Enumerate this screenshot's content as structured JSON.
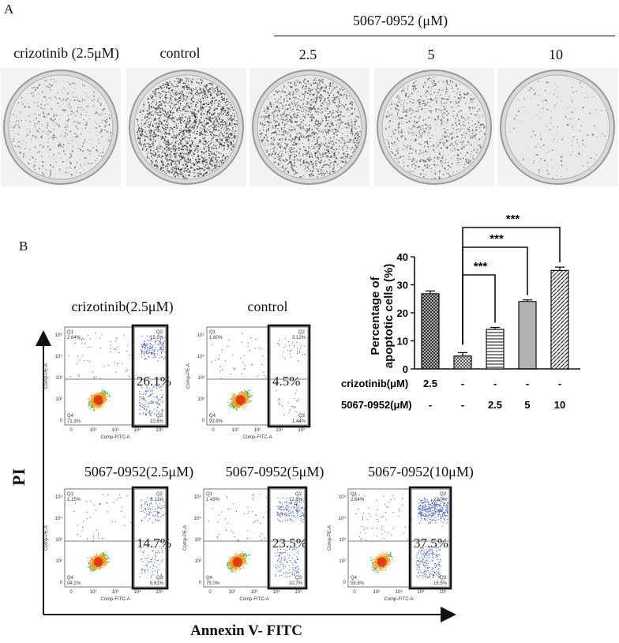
{
  "panelA": {
    "letter": "A",
    "group_header": "5067-0952 (μM)",
    "labels": [
      "crizotinib  (2.5μM)",
      "control",
      "2.5",
      "5",
      "10"
    ],
    "dish_density": [
      0.18,
      0.85,
      0.6,
      0.35,
      0.05
    ]
  },
  "panelB": {
    "letter": "B",
    "y_axis_title": "PI",
    "x_axis_title": "Annexin V- FITC",
    "plots": [
      {
        "title": "crizotinib(2.5μM)",
        "q1": "Q1",
        "q1v": "2.64%",
        "q2": "Q2",
        "q2v": "15.5%",
        "q3": "Q3",
        "q3v": "10.6%",
        "q4": "Q4",
        "q4v": "71.3%",
        "boxed": "26.1%"
      },
      {
        "title": "control",
        "q1": "Q1",
        "q1v": "1.60%",
        "q2": "Q2",
        "q2v": "3.12%",
        "q3": "Q3",
        "q3v": "1.44%",
        "q4": "Q4",
        "q4v": "93.9%",
        "boxed": "4.5%"
      },
      {
        "title": "5067-0952(2.5μM)",
        "q1": "Q1",
        "q1v": "1.15%",
        "q2": "Q2",
        "q2v": "8.11%",
        "q3": "Q3",
        "q3v": "6.61%",
        "q4": "Q4",
        "q4v": "84.1%",
        "boxed": "14.7%"
      },
      {
        "title": "5067-0952(5μM)",
        "q1": "Q1",
        "q1v": "1.43%",
        "q2": "Q2",
        "q2v": "12.8%",
        "q3": "Q3",
        "q3v": "10.7%",
        "q4": "Q4",
        "q4v": "75.0%",
        "boxed": "23.5%"
      },
      {
        "title": "5067-0952(10μM)",
        "q1": "Q1",
        "q1v": "2.64%",
        "q2": "Q2",
        "q2v": "22.0%",
        "q3": "Q3",
        "q3v": "15.5%",
        "q4": "Q4",
        "q4v": "59.8%",
        "boxed": "37.5%"
      }
    ],
    "flow_axes": {
      "ylabel": "Comp-PE-A",
      "xlabel": "Comp-FITC-A",
      "yticks": [
        "10⁵",
        "10⁴",
        "10³",
        "10²",
        "0"
      ],
      "xticks": [
        "0",
        "10²",
        "10³",
        "10⁴",
        "10⁵"
      ]
    }
  },
  "chart_data": {
    "type": "bar",
    "ylabel": "Percentage of apoptotic cells (%)",
    "ylim": [
      0,
      40
    ],
    "yticks": [
      0,
      10,
      20,
      30,
      40
    ],
    "categories": [
      "crizotinib 2.5",
      "control",
      "5067-0952 2.5",
      "5067-0952 5",
      "5067-0952 10"
    ],
    "values": [
      26.8,
      4.6,
      14.1,
      24.0,
      35.1
    ],
    "errors": [
      1.0,
      1.2,
      0.7,
      0.6,
      1.2
    ],
    "row_labels": [
      "crizotinib(μM)",
      "5067-0952(μM)"
    ],
    "row1": [
      "2.5",
      "-",
      "-",
      "-",
      "-"
    ],
    "row2": [
      "-",
      "-",
      "2.5",
      "5",
      "10"
    ],
    "significance": [
      "***",
      "***",
      "***"
    ]
  }
}
